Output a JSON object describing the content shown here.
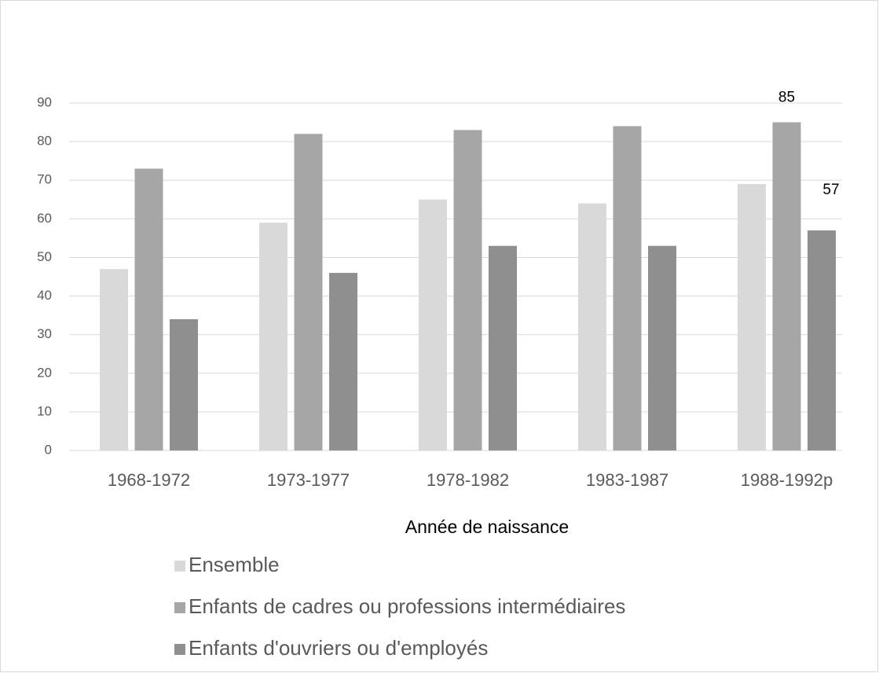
{
  "chart_data": {
    "type": "bar",
    "x_label": "Année de naissance",
    "categories": [
      "1968-1972",
      "1973-1977",
      "1978-1982",
      "1983-1987",
      "1988-1992p"
    ],
    "series": [
      {
        "name": "Ensemble",
        "color": "#d9d9d9",
        "values": [
          47,
          59,
          65,
          64,
          69
        ]
      },
      {
        "name": "Enfants de cadres ou professions intermédiaires",
        "color": "#a6a6a6",
        "values": [
          73,
          82,
          83,
          84,
          85
        ],
        "value_labels": [
          null,
          null,
          null,
          null,
          "85"
        ]
      },
      {
        "name": "Enfants d'ouvriers ou d'employés",
        "color": "#8f8f8f",
        "values": [
          34,
          46,
          53,
          53,
          57
        ],
        "value_labels": [
          null,
          null,
          null,
          null,
          "57"
        ]
      }
    ],
    "ylim": [
      0,
      90
    ],
    "yticks": [
      0,
      10,
      20,
      30,
      40,
      50,
      60,
      70,
      80,
      90
    ],
    "grid": true,
    "legend": "bottom"
  }
}
